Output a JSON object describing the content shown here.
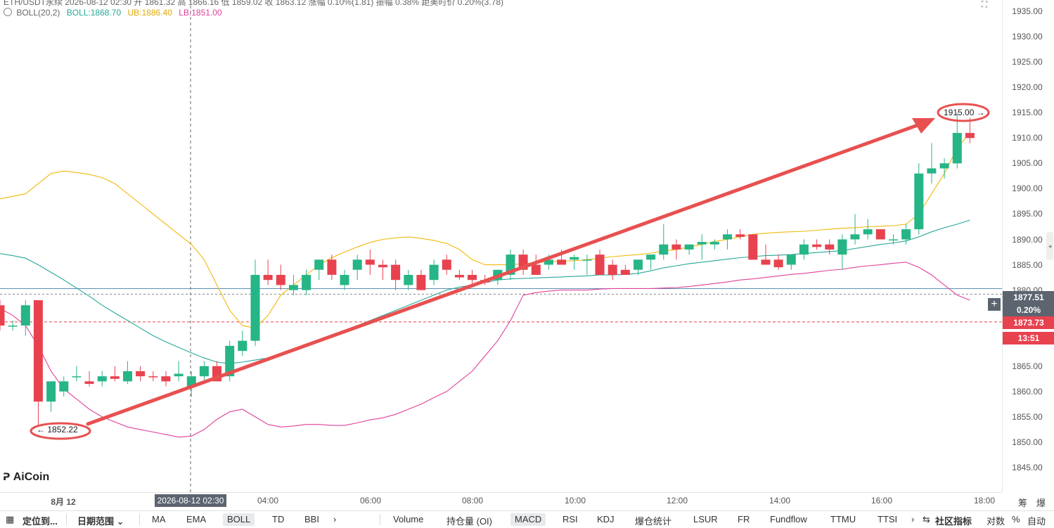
{
  "header": {
    "line1": "ETH/USDT永续  2026-08-12 02:30  开 1861.32  高 1866.16  低 1859.02  收 1863.12  涨幅 0.10%(1.81)  振幅 0.38%  距美时价 0.20%(3.78)",
    "boll_label": "BOLL(20,2)",
    "boll_value": "BOLL:1868.70",
    "ub_value": "UB:1886.40",
    "lb_value": "LB:1851.00",
    "colors": {
      "boll": "#26a69a",
      "ub": "#f0b90b",
      "lb": "#e0409a"
    }
  },
  "logo": {
    "text": "AiCoin"
  },
  "price_axis": {
    "ticks": [
      "1935.00",
      "1930.00",
      "1925.00",
      "1920.00",
      "1915.00",
      "1910.00",
      "1905.00",
      "1900.00",
      "1895.00",
      "1890.00",
      "1885.00",
      "1880.00",
      "1865.00",
      "1860.00",
      "1855.00",
      "1850.00",
      "1845.00"
    ],
    "current_price": "1877.51",
    "current_change": "0.20%",
    "last_price": "1873.73",
    "countdown": "13:51",
    "bottom_labels": [
      "筹",
      "爆"
    ]
  },
  "time_axis": {
    "labels": [
      "8月 12",
      "04:00",
      "06:00",
      "08:00",
      "10:00",
      "12:00",
      "14:00",
      "16:00",
      "18:00"
    ],
    "crosshair_label": "2026-08-12 02:30"
  },
  "annotations": {
    "low_label": "1852.22",
    "high_label": "1915.00"
  },
  "colors": {
    "up": "#26b587",
    "down": "#e8424f",
    "arrow": "#e85050"
  },
  "chart_data": {
    "type": "candlestick",
    "ylim": [
      1842.5,
      1937.5
    ],
    "candles": [
      {
        "o": 1877,
        "h": 1878,
        "l": 1872,
        "c": 1873
      },
      {
        "o": 1873,
        "h": 1874,
        "l": 1872,
        "c": 1873
      },
      {
        "o": 1873,
        "h": 1878,
        "l": 1871,
        "c": 1877
      },
      {
        "o": 1878,
        "h": 1878,
        "l": 1853,
        "c": 1858
      },
      {
        "o": 1858,
        "h": 1862,
        "l": 1856,
        "c": 1862
      },
      {
        "o": 1860,
        "h": 1863,
        "l": 1859,
        "c": 1862
      },
      {
        "o": 1863,
        "h": 1865,
        "l": 1862,
        "c": 1863
      },
      {
        "o": 1862,
        "h": 1864,
        "l": 1861,
        "c": 1861.5
      },
      {
        "o": 1862,
        "h": 1864,
        "l": 1861,
        "c": 1863
      },
      {
        "o": 1863,
        "h": 1865,
        "l": 1862,
        "c": 1862.5
      },
      {
        "o": 1862,
        "h": 1866,
        "l": 1861.5,
        "c": 1864
      },
      {
        "o": 1864,
        "h": 1865,
        "l": 1862,
        "c": 1863
      },
      {
        "o": 1863,
        "h": 1864,
        "l": 1862,
        "c": 1862.8
      },
      {
        "o": 1863,
        "h": 1864,
        "l": 1861,
        "c": 1862
      },
      {
        "o": 1863,
        "h": 1866,
        "l": 1862,
        "c": 1863.5
      },
      {
        "o": 1861,
        "h": 1864,
        "l": 1859,
        "c": 1863
      },
      {
        "o": 1863,
        "h": 1866,
        "l": 1862,
        "c": 1865
      },
      {
        "o": 1865,
        "h": 1866,
        "l": 1862,
        "c": 1862
      },
      {
        "o": 1863,
        "h": 1870,
        "l": 1862,
        "c": 1869
      },
      {
        "o": 1868,
        "h": 1872,
        "l": 1867,
        "c": 1870
      },
      {
        "o": 1870,
        "h": 1886,
        "l": 1869,
        "c": 1883
      },
      {
        "o": 1883,
        "h": 1886,
        "l": 1881,
        "c": 1882
      },
      {
        "o": 1883,
        "h": 1885,
        "l": 1880,
        "c": 1881
      },
      {
        "o": 1880,
        "h": 1883,
        "l": 1879,
        "c": 1881
      },
      {
        "o": 1880,
        "h": 1884,
        "l": 1879,
        "c": 1883
      },
      {
        "o": 1884,
        "h": 1886,
        "l": 1882,
        "c": 1886
      },
      {
        "o": 1886,
        "h": 1887,
        "l": 1882,
        "c": 1883
      },
      {
        "o": 1881,
        "h": 1884,
        "l": 1880,
        "c": 1883
      },
      {
        "o": 1884,
        "h": 1887,
        "l": 1882,
        "c": 1886
      },
      {
        "o": 1886,
        "h": 1888,
        "l": 1883,
        "c": 1885
      },
      {
        "o": 1885,
        "h": 1886,
        "l": 1882,
        "c": 1884.5
      },
      {
        "o": 1885,
        "h": 1886,
        "l": 1880,
        "c": 1882
      },
      {
        "o": 1881,
        "h": 1884,
        "l": 1880,
        "c": 1883
      },
      {
        "o": 1883,
        "h": 1884,
        "l": 1880,
        "c": 1880
      },
      {
        "o": 1882,
        "h": 1886,
        "l": 1881,
        "c": 1885
      },
      {
        "o": 1886,
        "h": 1887,
        "l": 1883,
        "c": 1884
      },
      {
        "o": 1883,
        "h": 1884,
        "l": 1882,
        "c": 1882.5
      },
      {
        "o": 1883,
        "h": 1884,
        "l": 1881,
        "c": 1882
      },
      {
        "o": 1882,
        "h": 1883,
        "l": 1881,
        "c": 1881.5
      },
      {
        "o": 1882,
        "h": 1884,
        "l": 1881,
        "c": 1884
      },
      {
        "o": 1883,
        "h": 1888,
        "l": 1882,
        "c": 1887
      },
      {
        "o": 1887,
        "h": 1888,
        "l": 1883,
        "c": 1884
      },
      {
        "o": 1885,
        "h": 1887,
        "l": 1883,
        "c": 1883
      },
      {
        "o": 1885,
        "h": 1887,
        "l": 1884,
        "c": 1886
      },
      {
        "o": 1886,
        "h": 1888,
        "l": 1885,
        "c": 1885
      },
      {
        "o": 1886,
        "h": 1887,
        "l": 1884,
        "c": 1886.5
      },
      {
        "o": 1886,
        "h": 1887,
        "l": 1883,
        "c": 1886
      },
      {
        "o": 1887,
        "h": 1888,
        "l": 1883,
        "c": 1883
      },
      {
        "o": 1885,
        "h": 1886,
        "l": 1882,
        "c": 1883
      },
      {
        "o": 1884,
        "h": 1885,
        "l": 1883,
        "c": 1883
      },
      {
        "o": 1884,
        "h": 1886,
        "l": 1883,
        "c": 1886
      },
      {
        "o": 1886,
        "h": 1887,
        "l": 1884,
        "c": 1887
      },
      {
        "o": 1887,
        "h": 1893,
        "l": 1886,
        "c": 1889
      },
      {
        "o": 1889,
        "h": 1890,
        "l": 1886,
        "c": 1888
      },
      {
        "o": 1888,
        "h": 1889,
        "l": 1887,
        "c": 1889
      },
      {
        "o": 1889,
        "h": 1891,
        "l": 1886,
        "c": 1889.5
      },
      {
        "o": 1889,
        "h": 1890,
        "l": 1888,
        "c": 1889.5
      },
      {
        "o": 1890,
        "h": 1892,
        "l": 1888,
        "c": 1891
      },
      {
        "o": 1891,
        "h": 1892,
        "l": 1890,
        "c": 1890.5
      },
      {
        "o": 1891,
        "h": 1891,
        "l": 1886,
        "c": 1886
      },
      {
        "o": 1886,
        "h": 1889,
        "l": 1885,
        "c": 1885
      },
      {
        "o": 1886,
        "h": 1887,
        "l": 1884,
        "c": 1884.5
      },
      {
        "o": 1885,
        "h": 1887,
        "l": 1884,
        "c": 1887
      },
      {
        "o": 1887,
        "h": 1890,
        "l": 1886,
        "c": 1889
      },
      {
        "o": 1889,
        "h": 1890,
        "l": 1888,
        "c": 1888.5
      },
      {
        "o": 1889,
        "h": 1890,
        "l": 1887,
        "c": 1888
      },
      {
        "o": 1887,
        "h": 1891,
        "l": 1884,
        "c": 1890
      },
      {
        "o": 1890,
        "h": 1895,
        "l": 1889,
        "c": 1891
      },
      {
        "o": 1891,
        "h": 1894,
        "l": 1890,
        "c": 1892
      },
      {
        "o": 1892,
        "h": 1892,
        "l": 1890,
        "c": 1890
      },
      {
        "o": 1890,
        "h": 1891,
        "l": 1889,
        "c": 1890
      },
      {
        "o": 1890,
        "h": 1893,
        "l": 1889,
        "c": 1892
      },
      {
        "o": 1892,
        "h": 1905,
        "l": 1891,
        "c": 1903
      },
      {
        "o": 1903,
        "h": 1909,
        "l": 1901,
        "c": 1904
      },
      {
        "o": 1904,
        "h": 1906,
        "l": 1902,
        "c": 1905
      },
      {
        "o": 1905,
        "h": 1915,
        "l": 1904,
        "c": 1911
      },
      {
        "o": 1911,
        "h": 1914,
        "l": 1909,
        "c": 1910
      }
    ],
    "boll_mid": [
      1887.2,
      1886.8,
      1886.3,
      1885,
      1883.5,
      1882,
      1880.4,
      1878.8,
      1877,
      1875.5,
      1874,
      1872.5,
      1871,
      1869.8,
      1868.7,
      1867.6,
      1866.6,
      1865.8,
      1865.5,
      1865.8,
      1866.2,
      1866.6,
      1867.2,
      1868,
      1869,
      1870,
      1871,
      1872,
      1873,
      1874,
      1875,
      1876,
      1877,
      1878,
      1879,
      1880,
      1880.6,
      1881,
      1881.5,
      1882,
      1882.2,
      1882.3,
      1882.4,
      1882.5,
      1882.6,
      1882.7,
      1882.8,
      1883,
      1883,
      1883.1,
      1883.3,
      1883.8,
      1884.4,
      1884.8,
      1885.2,
      1885.5,
      1885.8,
      1886.1,
      1886.4,
      1886.6,
      1886.8,
      1886.9,
      1887,
      1887.2,
      1887.4,
      1887.6,
      1887.8,
      1888.2,
      1888.6,
      1889,
      1889.3,
      1889.7,
      1890.5,
      1891.5,
      1892.3,
      1893,
      1893.8
    ],
    "boll_ub": [
      1898,
      1898.5,
      1899,
      1901,
      1903,
      1903.5,
      1903.2,
      1902.8,
      1902.2,
      1901,
      1899,
      1897,
      1895,
      1893,
      1891,
      1889,
      1886,
      1881,
      1876,
      1873,
      1872.5,
      1875,
      1879,
      1881,
      1883,
      1885,
      1886.4,
      1887.5,
      1888.5,
      1889.4,
      1890,
      1890.3,
      1890.5,
      1890.2,
      1889.8,
      1889.2,
      1888,
      1886,
      1885,
      1885,
      1885,
      1885.2,
      1885.4,
      1885.6,
      1885.7,
      1885.8,
      1886,
      1886.3,
      1886.6,
      1886.8,
      1887,
      1887.3,
      1887.7,
      1888,
      1888.5,
      1889,
      1889.6,
      1890,
      1890.5,
      1891,
      1891.2,
      1891.4,
      1891.5,
      1891.6,
      1891.8,
      1892,
      1892.2,
      1892.3,
      1892.5,
      1892.6,
      1892.7,
      1893,
      1895,
      1899,
      1903,
      1908,
      1911
    ],
    "boll_lb": [
      1876.4,
      1875,
      1873,
      1869,
      1864,
      1860.5,
      1858.5,
      1856.5,
      1855,
      1854,
      1853,
      1852.5,
      1852,
      1851.5,
      1851,
      1851.2,
      1852.5,
      1854.5,
      1856,
      1856.5,
      1855,
      1853.5,
      1853,
      1853.2,
      1853.5,
      1853.5,
      1853.3,
      1853.3,
      1853.8,
      1854.4,
      1854.8,
      1855.5,
      1856.5,
      1857.5,
      1858.8,
      1860,
      1862,
      1864,
      1867,
      1870,
      1874,
      1879,
      1879.5,
      1879.8,
      1880,
      1880,
      1880,
      1880.2,
      1880.3,
      1880.3,
      1880.3,
      1880.3,
      1880.4,
      1880.5,
      1880.7,
      1881,
      1881.3,
      1881.6,
      1882,
      1882.2,
      1882.5,
      1882.8,
      1883.1,
      1883.3,
      1883.6,
      1883.9,
      1884.1,
      1884.5,
      1884.8,
      1885,
      1885.3,
      1885.5,
      1884.5,
      1883,
      1881,
      1879,
      1878
    ]
  },
  "toolbar": {
    "locate": "定位到...",
    "date_range": "日期范围",
    "indicators_main": [
      "MA",
      "EMA",
      "BOLL",
      "TD",
      "BBI"
    ],
    "indicators_sub": [
      "Volume",
      "持仓量 (OI)",
      "MACD",
      "RSI",
      "KDJ",
      "爆仓统计",
      "LSUR",
      "FR",
      "Fundflow",
      "TTMU",
      "TTSI"
    ],
    "community": "社区指标",
    "log": "对数",
    "percent": "%",
    "auto": "自动"
  }
}
